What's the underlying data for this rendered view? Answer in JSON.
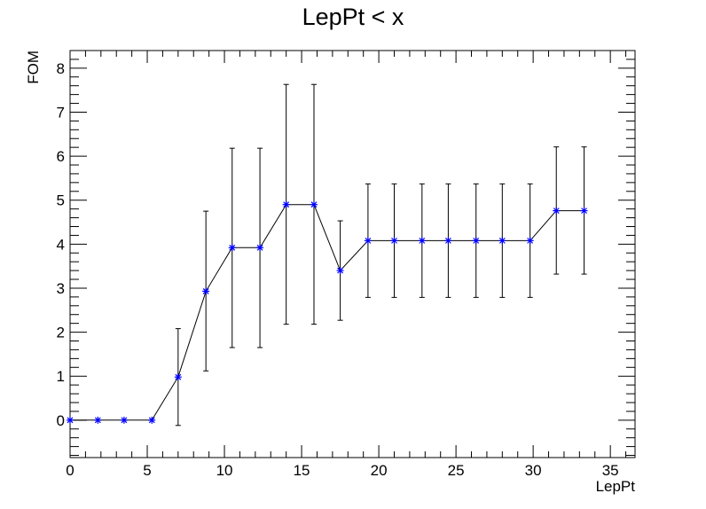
{
  "chart_data": {
    "type": "line",
    "title": "LepPt < x",
    "xlabel": "LepPt",
    "ylabel": "FOM",
    "xlim": [
      0,
      36.6
    ],
    "ylim": [
      -0.85,
      8.4
    ],
    "x_ticks": [
      0,
      5,
      10,
      15,
      20,
      25,
      30,
      35
    ],
    "y_ticks": [
      0,
      1,
      2,
      3,
      4,
      5,
      6,
      7,
      8
    ],
    "grid": false,
    "legend": "none",
    "marker": "star",
    "colors": {
      "marker": "#0000ff",
      "line": "#000000",
      "errorbar": "#000000"
    },
    "series": [
      {
        "x": [
          0.0,
          1.8,
          3.5,
          5.3,
          7.0,
          8.8,
          10.5,
          12.3,
          14.0,
          15.8,
          17.5,
          19.3,
          21.0,
          22.8,
          24.5,
          26.3,
          28.0,
          29.8,
          31.5,
          33.3
        ],
        "y": [
          0,
          0,
          0,
          0,
          0.98,
          2.93,
          3.92,
          3.92,
          4.9,
          4.9,
          3.4,
          4.08,
          4.08,
          4.08,
          4.08,
          4.08,
          4.08,
          4.08,
          4.76,
          4.76
        ],
        "y_low": [
          0,
          0,
          0,
          0,
          -0.12,
          1.12,
          1.65,
          1.65,
          2.18,
          2.18,
          2.27,
          2.79,
          2.79,
          2.79,
          2.79,
          2.79,
          2.79,
          2.79,
          3.32,
          3.32
        ],
        "y_high": [
          0,
          0,
          0,
          0,
          2.08,
          4.75,
          6.18,
          6.18,
          7.63,
          7.63,
          4.53,
          5.37,
          5.37,
          5.37,
          5.37,
          5.37,
          5.37,
          5.37,
          6.21,
          6.21
        ]
      }
    ]
  }
}
